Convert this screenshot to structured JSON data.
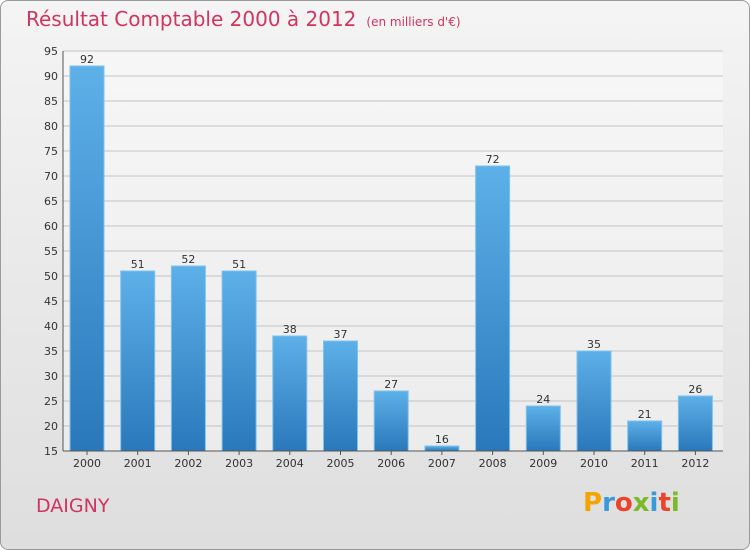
{
  "chart_data": {
    "type": "bar",
    "title": "Résultat Comptable 2000 à 2012",
    "subtitle": "(en milliers d'€)",
    "categories": [
      "2000",
      "2001",
      "2002",
      "2003",
      "2004",
      "2005",
      "2006",
      "2007",
      "2008",
      "2009",
      "2010",
      "2011",
      "2012"
    ],
    "values": [
      92,
      51,
      52,
      51,
      38,
      37,
      27,
      16,
      72,
      24,
      35,
      21,
      26
    ],
    "ylim": [
      15,
      95
    ],
    "yticks": [
      15,
      20,
      25,
      30,
      35,
      40,
      45,
      50,
      55,
      60,
      65,
      70,
      75,
      80,
      85,
      90,
      95
    ],
    "grid": true,
    "xlabel": "",
    "ylabel": "",
    "colors": {
      "bar": "#4fa3df",
      "bar_dark": "#2f7fc0",
      "title": "#d0345f"
    }
  },
  "footer": {
    "commune": "DAIGNY",
    "brand_letters": [
      "P",
      "r",
      "o",
      "x",
      "i",
      "t",
      "i"
    ],
    "brand_colors": [
      "#f2a400",
      "#3a9ad9",
      "#e8452c",
      "#7ab929",
      "#3a9ad9",
      "#e8452c",
      "#7ab929"
    ]
  }
}
